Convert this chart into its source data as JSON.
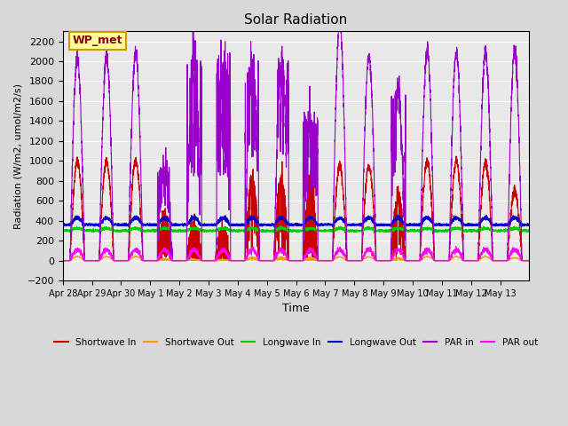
{
  "title": "Solar Radiation",
  "ylabel": "Radiation (W/m2, umol/m2/s)",
  "xlabel": "Time",
  "ylim": [
    -200,
    2300
  ],
  "yticks": [
    -200,
    0,
    200,
    400,
    600,
    800,
    1000,
    1200,
    1400,
    1600,
    1800,
    2000,
    2200
  ],
  "xtick_labels": [
    "Apr 28",
    "Apr 29",
    "Apr 30",
    "May 1",
    "May 2",
    "May 3",
    "May 4",
    "May 5",
    "May 6",
    "May 7",
    "May 8",
    "May 9",
    "May 10",
    "May 11",
    "May 12",
    "May 13"
  ],
  "plot_background": "#e8e8e8",
  "fig_background": "#d8d8d8",
  "annotation_text": "WP_met",
  "annotation_bg": "#ffff99",
  "annotation_border": "#cc9900",
  "colors": {
    "sw_in": "#cc0000",
    "sw_out": "#ff9900",
    "lw_in": "#00cc00",
    "lw_out": "#0000cc",
    "par_in": "#9900cc",
    "par_out": "#ff00ff"
  },
  "n_days": 16,
  "points_per_day": 288
}
